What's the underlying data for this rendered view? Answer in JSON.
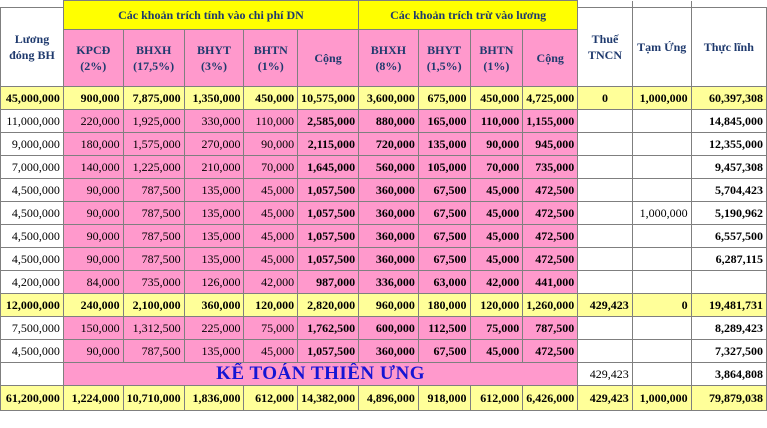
{
  "header": {
    "luong_dong_bh": "Lương đóng BH",
    "group_dn": "Các khoản trích tính vào chi phí DN",
    "group_luong": "Các khoản trích trừ vào lương",
    "dn_cols": [
      {
        "name": "KPCĐ",
        "pct": "(2%)"
      },
      {
        "name": "BHXH",
        "pct": "(17,5%)"
      },
      {
        "name": "BHYT",
        "pct": "(3%)"
      },
      {
        "name": "BHTN",
        "pct": "(1%)"
      },
      {
        "name": "Cộng",
        "pct": ""
      }
    ],
    "luong_cols": [
      {
        "name": "BHXH",
        "pct": "(8%)"
      },
      {
        "name": "BHYT",
        "pct": "(1,5%)"
      },
      {
        "name": "BHTN",
        "pct": "(1%)"
      },
      {
        "name": "Cộng",
        "pct": ""
      }
    ],
    "thue_tncn": "Thuế TNCN",
    "tam_ung": "Tạm Ứng",
    "thuc_linh": "Thực lĩnh"
  },
  "rows": [
    {
      "style": "yellow-bold",
      "cells": [
        "45,000,000",
        "900,000",
        "7,875,000",
        "1,350,000",
        "450,000",
        "10,575,000",
        "3,600,000",
        "675,000",
        "450,000",
        "4,725,000",
        "0",
        "1,000,000",
        "60,397,308"
      ]
    },
    {
      "style": "normal",
      "cells": [
        "11,000,000",
        "220,000",
        "1,925,000",
        "330,000",
        "110,000",
        "2,585,000",
        "880,000",
        "165,000",
        "110,000",
        "1,155,000",
        "",
        "",
        "14,845,000"
      ]
    },
    {
      "style": "normal",
      "cells": [
        "9,000,000",
        "180,000",
        "1,575,000",
        "270,000",
        "90,000",
        "2,115,000",
        "720,000",
        "135,000",
        "90,000",
        "945,000",
        "",
        "",
        "12,355,000"
      ]
    },
    {
      "style": "normal",
      "cells": [
        "7,000,000",
        "140,000",
        "1,225,000",
        "210,000",
        "70,000",
        "1,645,000",
        "560,000",
        "105,000",
        "70,000",
        "735,000",
        "",
        "",
        "9,457,308"
      ]
    },
    {
      "style": "normal",
      "cells": [
        "4,500,000",
        "90,000",
        "787,500",
        "135,000",
        "45,000",
        "1,057,500",
        "360,000",
        "67,500",
        "45,000",
        "472,500",
        "",
        "",
        "5,704,423"
      ]
    },
    {
      "style": "normal",
      "cells": [
        "4,500,000",
        "90,000",
        "787,500",
        "135,000",
        "45,000",
        "1,057,500",
        "360,000",
        "67,500",
        "45,000",
        "472,500",
        "",
        "1,000,000",
        "5,190,962"
      ]
    },
    {
      "style": "normal",
      "cells": [
        "4,500,000",
        "90,000",
        "787,500",
        "135,000",
        "45,000",
        "1,057,500",
        "360,000",
        "67,500",
        "45,000",
        "472,500",
        "",
        "",
        "6,557,500"
      ]
    },
    {
      "style": "normal",
      "cells": [
        "4,500,000",
        "90,000",
        "787,500",
        "135,000",
        "45,000",
        "1,057,500",
        "360,000",
        "67,500",
        "45,000",
        "472,500",
        "",
        "",
        "6,287,115"
      ]
    },
    {
      "style": "normal",
      "cells": [
        "4,200,000",
        "84,000",
        "735,000",
        "126,000",
        "42,000",
        "987,000",
        "336,000",
        "63,000",
        "42,000",
        "441,000",
        "",
        "",
        ""
      ]
    },
    {
      "style": "yellow-bold",
      "cells": [
        "12,000,000",
        "240,000",
        "2,100,000",
        "360,000",
        "120,000",
        "2,820,000",
        "960,000",
        "180,000",
        "120,000",
        "1,260,000",
        "429,423",
        "0",
        "19,481,731"
      ]
    },
    {
      "style": "normal",
      "cells": [
        "7,500,000",
        "150,000",
        "1,312,500",
        "225,000",
        "75,000",
        "1,762,500",
        "600,000",
        "112,500",
        "75,000",
        "787,500",
        "",
        "",
        "8,289,423"
      ]
    },
    {
      "style": "normal",
      "cells": [
        "4,500,000",
        "90,000",
        "787,500",
        "135,000",
        "45,000",
        "1,057,500",
        "360,000",
        "67,500",
        "45,000",
        "472,500",
        "",
        "",
        "7,327,500"
      ]
    },
    {
      "style": "watermark",
      "cells": [
        "",
        "",
        "",
        "",
        "",
        "",
        "",
        "",
        "",
        "",
        "429,423",
        "",
        "3,864,808"
      ]
    }
  ],
  "total": [
    "61,200,000",
    "1,224,000",
    "10,710,000",
    "1,836,000",
    "612,000",
    "14,382,000",
    "4,896,000",
    "918,000",
    "612,000",
    "6,426,000",
    "429,423",
    "1,000,000",
    "79,879,038"
  ],
  "watermark_text": "KẾ TOÁN THIÊN ƯNG",
  "colors": {
    "yellow": "#ffff00",
    "light_yellow": "#ffff99",
    "pink": "#ff99cc",
    "watermark": "#1515d4"
  }
}
